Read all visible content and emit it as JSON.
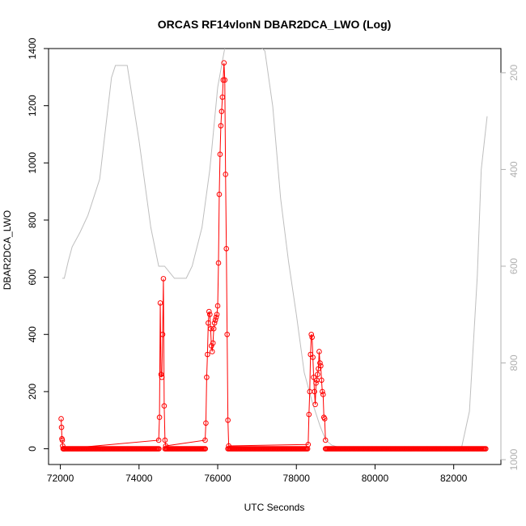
{
  "chart_data": {
    "type": "scatter",
    "title": "ORCAS RF14vlonN DBAR2DCA_LWO (Log)",
    "xlabel": "UTC Seconds",
    "ylabel": "DBAR2DCA_LWO",
    "xlim": [
      71700,
      83200
    ],
    "ylim": [
      -55,
      1400
    ],
    "x_ticks": [
      72000,
      74000,
      76000,
      78000,
      80000,
      82000
    ],
    "y_ticks": [
      0,
      200,
      400,
      600,
      800,
      1000,
      1200,
      1400
    ],
    "y2_ticks": [
      200,
      400,
      600,
      800,
      1000
    ],
    "y2_range": [
      1010,
      150
    ],
    "colors": {
      "series": "#ff0000",
      "secondary": "#bebebe",
      "axis": "#000000",
      "right_axis": "#b0b0b0"
    },
    "series": [
      {
        "x": [
          72020,
          72030,
          72040,
          72050,
          72060,
          72070,
          72080,
          72100,
          74500,
          74520,
          74540,
          74560,
          74580,
          74600,
          74620,
          74640,
          74660,
          74680,
          75680,
          75700,
          75720,
          75740,
          75760,
          75780,
          75800,
          75820,
          75840,
          75860,
          75880,
          75900,
          75920,
          75940,
          75960,
          75980,
          76000,
          76020,
          76040,
          76060,
          76080,
          76100,
          76120,
          76140,
          76160,
          76180,
          76200,
          76220,
          76240,
          76260,
          76280,
          78300,
          78320,
          78340,
          78360,
          78380,
          78400,
          78420,
          78440,
          78460,
          78480,
          78500,
          78520,
          78540,
          78560,
          78580,
          78600,
          78620,
          78640,
          78660,
          78680,
          78700,
          78720,
          78740
        ],
        "y": [
          105,
          75,
          35,
          30,
          10,
          0,
          0,
          0,
          30,
          110,
          510,
          260,
          250,
          400,
          595,
          150,
          30,
          10,
          30,
          90,
          250,
          330,
          440,
          480,
          470,
          420,
          360,
          340,
          370,
          420,
          440,
          450,
          460,
          470,
          500,
          650,
          890,
          1030,
          1130,
          1180,
          1230,
          1290,
          1350,
          1290,
          960,
          700,
          400,
          100,
          10,
          15,
          120,
          200,
          330,
          400,
          390,
          320,
          250,
          200,
          155,
          230,
          240,
          260,
          280,
          340,
          300,
          290,
          240,
          200,
          190,
          110,
          105,
          30
        ]
      },
      {
        "x": [
          72050,
          72100,
          72200,
          72300,
          72500,
          72700,
          73000,
          73300,
          73400,
          73700,
          74000,
          74300,
          74500,
          74650,
          74900,
          75200,
          75350,
          75600,
          75800,
          76000,
          76200,
          76400,
          76600,
          76800,
          77000,
          77200,
          77400,
          77600,
          77800,
          78000,
          78200,
          78400,
          78600,
          78750,
          78900,
          79100,
          79600,
          80500,
          81500,
          82200,
          82400,
          82600,
          82700,
          82850
        ],
        "y2": [
          625,
          625,
          590,
          560,
          530,
          495,
          420,
          210,
          185,
          185,
          340,
          520,
          600,
          600,
          625,
          625,
          600,
          520,
          400,
          230,
          140,
          140,
          140,
          140,
          140,
          155,
          270,
          460,
          590,
          700,
          820,
          880,
          930,
          960,
          970,
          975,
          975,
          975,
          975,
          975,
          900,
          620,
          400,
          290
        ]
      }
    ]
  }
}
